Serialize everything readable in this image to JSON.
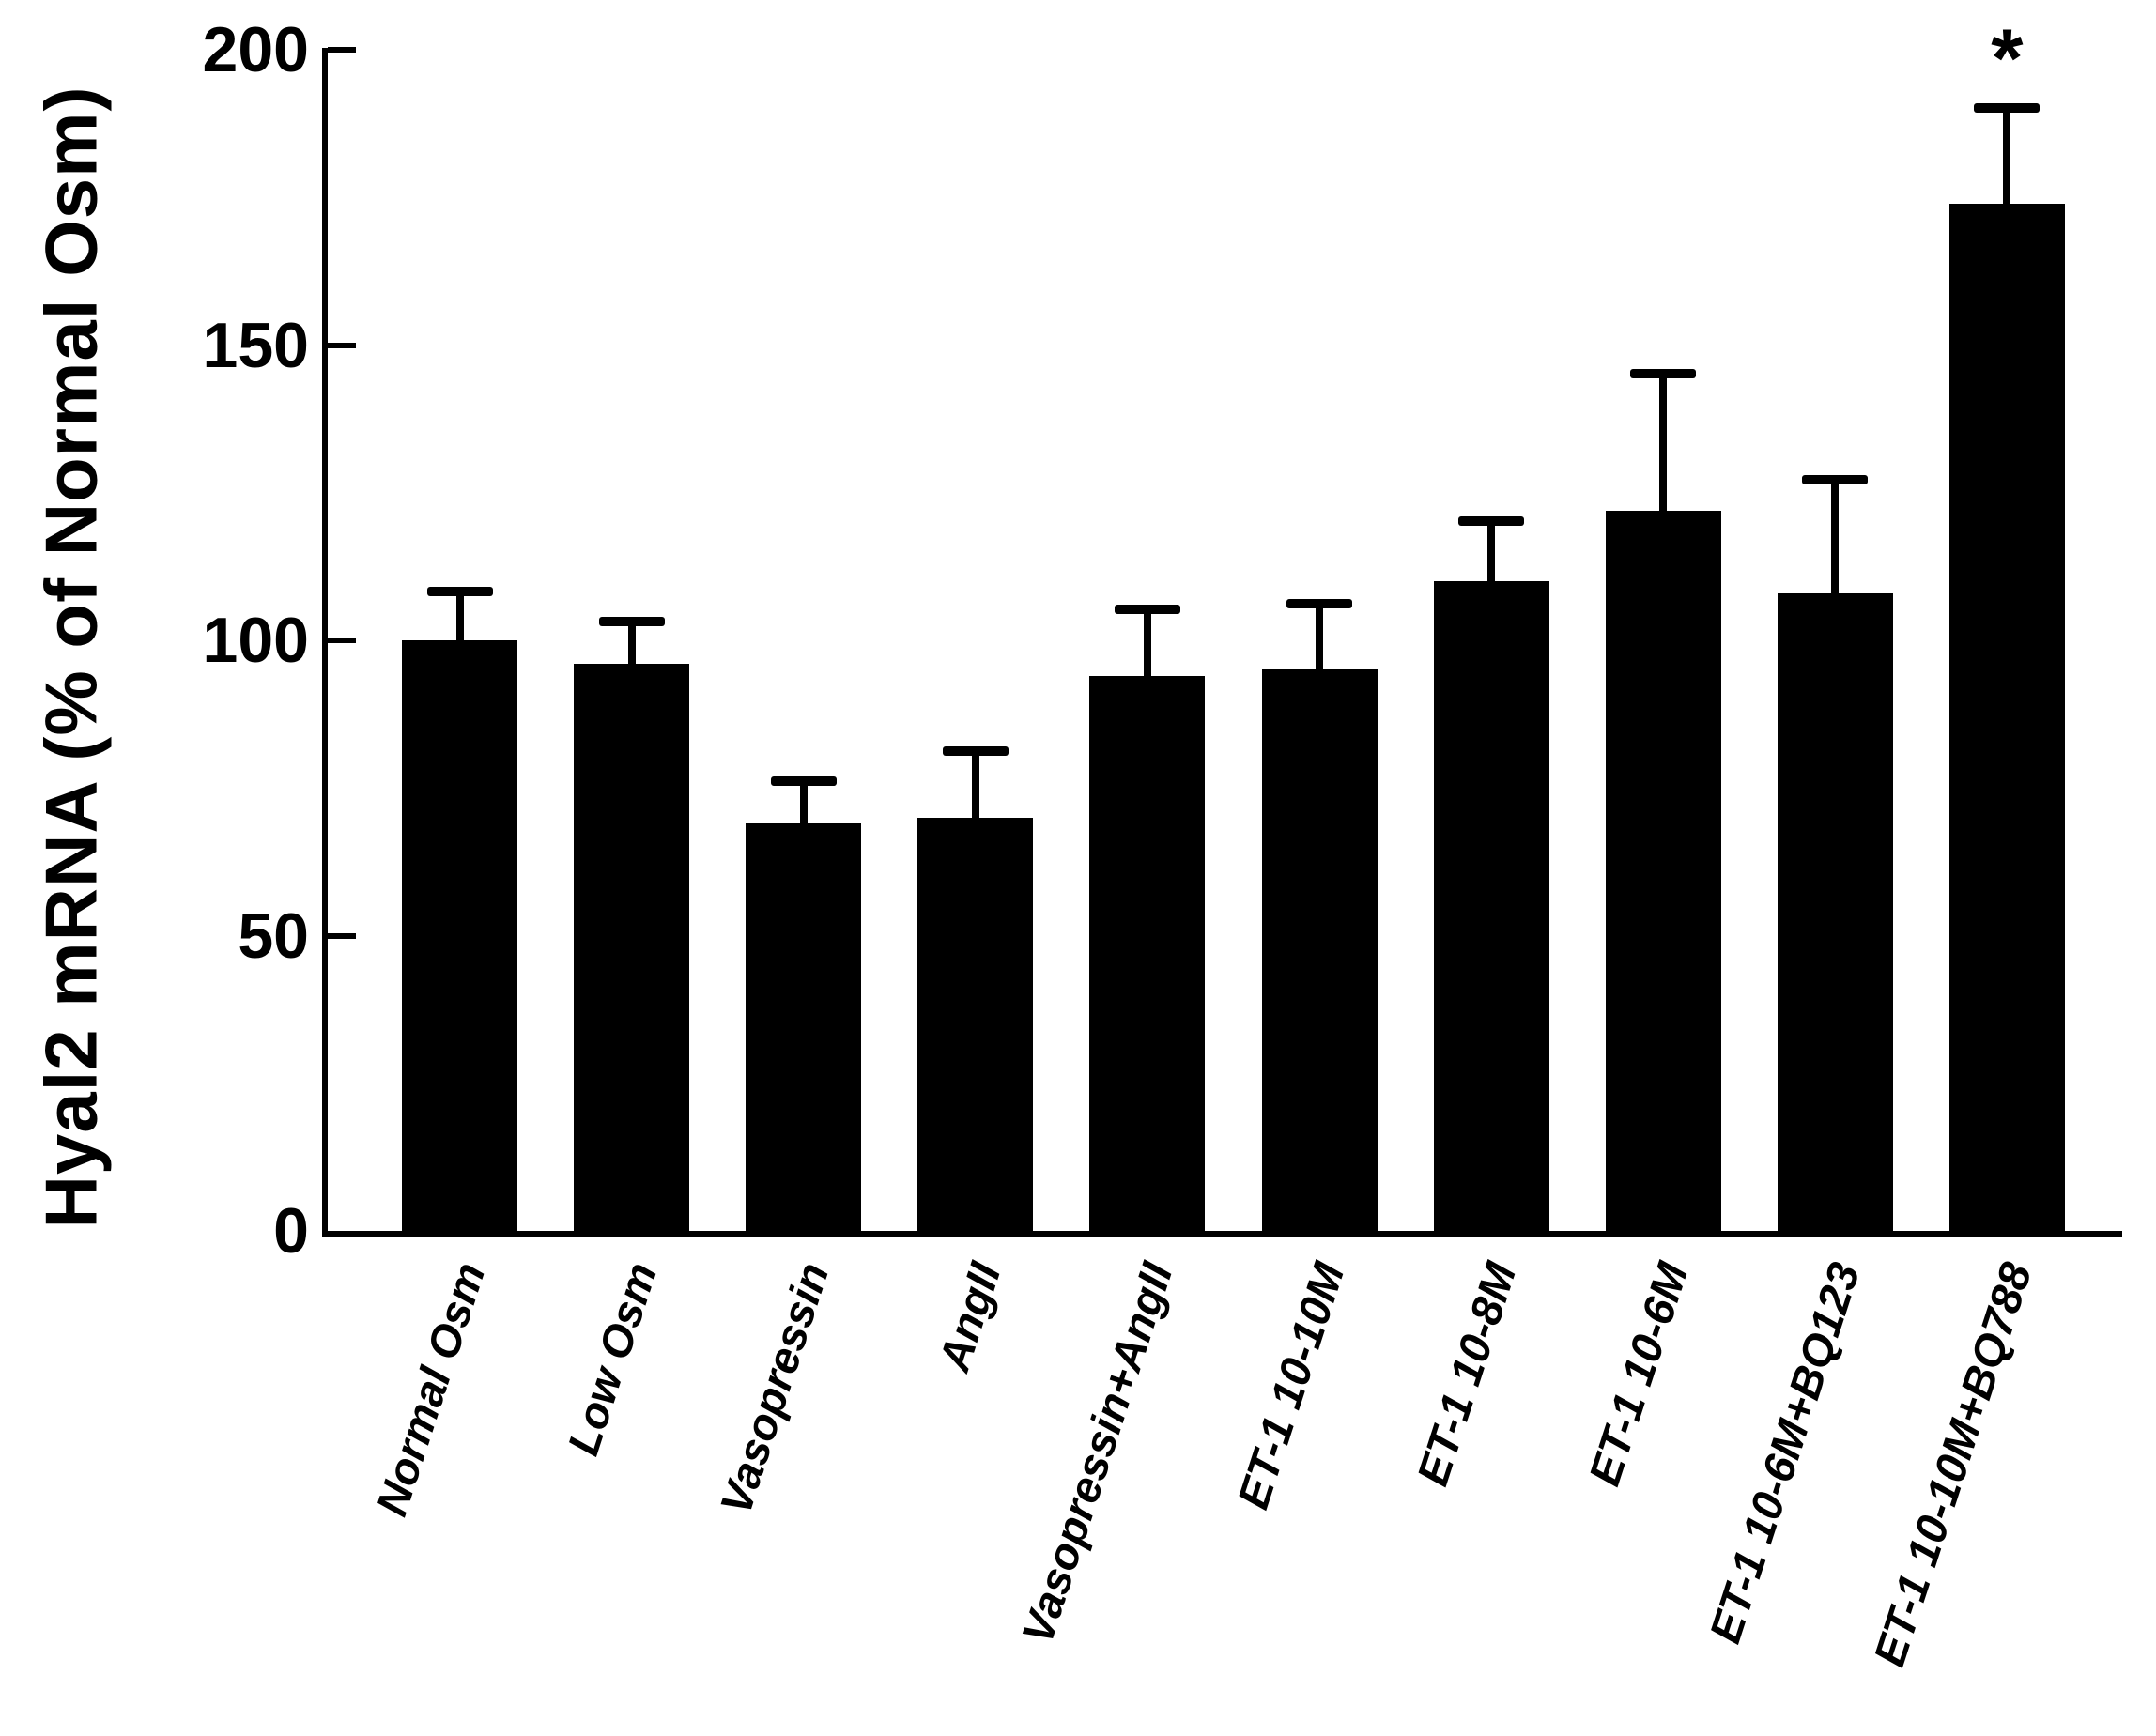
{
  "chart_data": {
    "type": "bar",
    "title": "",
    "xlabel": "",
    "ylabel": "Hyal2 mRNA (% of Normal Osm)",
    "ylim": [
      0,
      200
    ],
    "yticks": [
      0,
      50,
      100,
      150,
      200
    ],
    "grid": false,
    "legend": false,
    "bar_color": "#000000",
    "background_color": "#ffffff",
    "error_bar_style": "upper-only-with-cap",
    "categories": [
      "Normal Osm",
      "Low Osm",
      "Vasopressin",
      "AngII",
      "Vasopressin+AngII",
      "ET-1 10-10M",
      "ET-1 10-8M",
      "ET-1 10-6M",
      "ET-1 10-6M+BQ123",
      "ET-1 10-10M+BQ788"
    ],
    "values": [
      100,
      96,
      69,
      70,
      94,
      95,
      110,
      122,
      108,
      174
    ],
    "errors_upper": [
      9,
      8,
      8,
      12,
      12,
      12,
      11,
      24,
      20,
      17
    ],
    "annotations": [
      {
        "category": "ET-1 10-10M+BQ788",
        "text": "*"
      }
    ]
  }
}
